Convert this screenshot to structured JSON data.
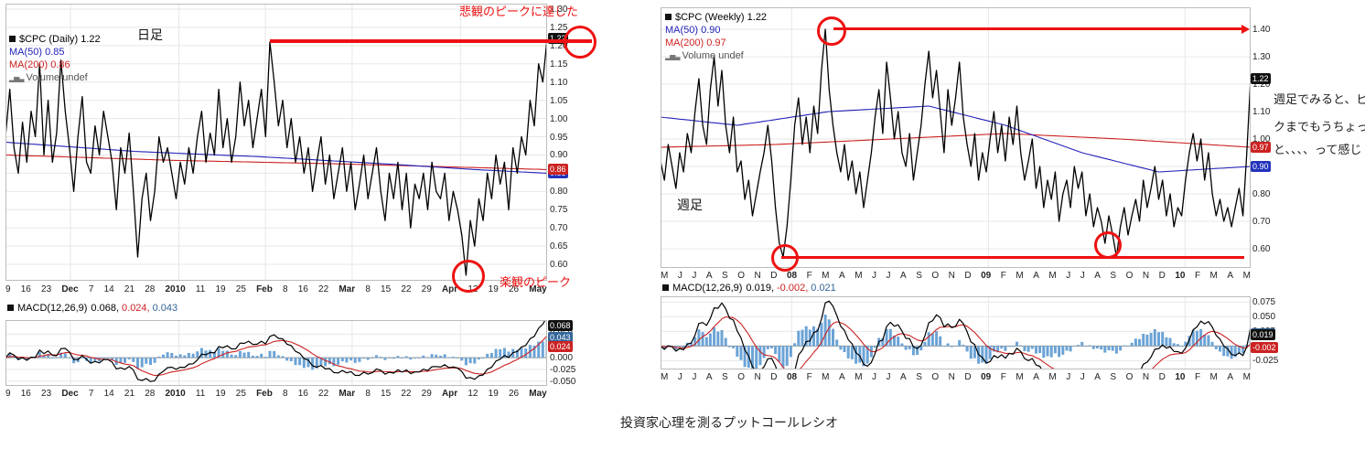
{
  "caption": "投資家心理を測るプットコールレシオ",
  "side_note": {
    "lines": [
      "週足でみると、ピー",
      "クまでもうちょっ",
      "と、、、、って感じ"
    ]
  },
  "colors": {
    "price": "#000000",
    "ma50": "#2222bb",
    "ma200": "#cc2222",
    "hist": "#6ba3d6",
    "signal": "#cc2222",
    "macd_line": "#000000",
    "grid": "#e7e7e7",
    "zero": "#999999",
    "annotation": "#ee1111",
    "box_black": "#111111",
    "box_red": "#cc2222",
    "box_blue": "#2233bb",
    "box_macd_blue": "#336699"
  },
  "left": {
    "legend": {
      "title": "$CPC (Daily) 1.22",
      "ma50": "MA(50) 0.85",
      "ma200": "MA(200) 0.86",
      "volume": "Volume undef"
    },
    "macd_legend": {
      "label": "MACD(12,26,9)",
      "v1": "0.068,",
      "v2": "0.024,",
      "v3": "0.043"
    },
    "frame_label": "日足",
    "ann_top": "悲観のピークに達した",
    "ann_bottom": "楽観のピーク"
  },
  "right": {
    "legend": {
      "title": "$CPC (Weekly) 1.22",
      "ma50": "MA(50) 0.90",
      "ma200": "MA(200) 0.97",
      "volume": "Volume undef"
    },
    "macd_legend": {
      "label": "MACD(12,26,9)",
      "v1": "0.019,",
      "v2": "-0.002,",
      "v3": "0.021"
    },
    "frame_label": "週足"
  },
  "chart_data": [
    {
      "id": "daily-price",
      "type": "line",
      "title": "$CPC (Daily) 1.22",
      "xlabel": "",
      "ylabel": "",
      "ylim": [
        0.555,
        1.315
      ],
      "yticks": [
        0.6,
        0.65,
        0.7,
        0.75,
        0.8,
        0.85,
        0.9,
        0.95,
        1.0,
        1.05,
        1.1,
        1.15,
        1.2,
        1.25,
        1.3
      ],
      "x_labels": [
        {
          "t": "9"
        },
        {
          "t": "16"
        },
        {
          "t": "23"
        },
        {
          "t": "Dec",
          "b": 1
        },
        {
          "t": "7"
        },
        {
          "t": "14"
        },
        {
          "t": "21"
        },
        {
          "t": "28"
        },
        {
          "t": "2010",
          "b": 1
        },
        {
          "t": "11"
        },
        {
          "t": "19"
        },
        {
          "t": "25"
        },
        {
          "t": "Feb",
          "b": 1
        },
        {
          "t": "8"
        },
        {
          "t": "16"
        },
        {
          "t": "22"
        },
        {
          "t": "Mar",
          "b": 1
        },
        {
          "t": "8"
        },
        {
          "t": "15"
        },
        {
          "t": "22"
        },
        {
          "t": "29"
        },
        {
          "t": "Apr",
          "b": 1
        },
        {
          "t": "12"
        },
        {
          "t": "19"
        },
        {
          "t": "26"
        },
        {
          "t": "May",
          "b": 1
        }
      ],
      "series": [
        {
          "name": "$CPC",
          "color_key": "price",
          "width": 1.3,
          "values": [
            0.95,
            1.08,
            0.92,
            0.85,
            0.99,
            0.88,
            1.02,
            0.95,
            1.15,
            0.9,
            1.05,
            0.88,
            0.96,
            1.16,
            1.02,
            0.92,
            0.8,
            0.95,
            1.06,
            0.88,
            0.85,
            0.98,
            0.9,
            1.02,
            0.95,
            0.88,
            0.75,
            0.92,
            0.85,
            0.96,
            0.8,
            0.62,
            0.78,
            0.85,
            0.72,
            0.8,
            0.95,
            0.88,
            0.92,
            0.85,
            0.78,
            0.88,
            0.82,
            0.92,
            0.85,
            0.95,
            1.02,
            0.88,
            0.96,
            0.9,
            1.08,
            0.92,
            1.0,
            0.88,
            0.95,
            1.1,
            0.98,
            1.05,
            0.92,
            1.0,
            1.08,
            0.95,
            1.21,
            1.1,
            0.98,
            1.05,
            0.92,
            1.0,
            0.88,
            0.95,
            0.85,
            0.92,
            0.8,
            0.88,
            0.95,
            0.82,
            0.9,
            0.78,
            0.85,
            0.92,
            0.8,
            0.88,
            0.75,
            0.82,
            0.9,
            0.78,
            0.85,
            0.92,
            0.8,
            0.72,
            0.85,
            0.78,
            0.88,
            0.75,
            0.85,
            0.7,
            0.82,
            0.78,
            0.85,
            0.75,
            0.88,
            0.8,
            0.78,
            0.85,
            0.72,
            0.8,
            0.75,
            0.68,
            0.57,
            0.72,
            0.65,
            0.78,
            0.72,
            0.85,
            0.78,
            0.9,
            0.82,
            0.88,
            0.75,
            0.92,
            0.85,
            0.95,
            0.9,
            1.05,
            0.98,
            1.15,
            1.1,
            1.22
          ]
        },
        {
          "name": "MA(50)",
          "color_key": "ma50",
          "width": 1.1,
          "knots": [
            [
              0,
              0.935
            ],
            [
              30,
              0.91
            ],
            [
              60,
              0.895
            ],
            [
              90,
              0.875
            ],
            [
              110,
              0.86
            ],
            [
              127,
              0.85
            ]
          ]
        },
        {
          "name": "MA(200)",
          "color_key": "ma200",
          "width": 1.1,
          "knots": [
            [
              0,
              0.9
            ],
            [
              40,
              0.885
            ],
            [
              80,
              0.875
            ],
            [
              127,
              0.86
            ]
          ]
        }
      ],
      "boxes": [
        {
          "v": 1.22,
          "t": "1.22",
          "bg": "#111111"
        },
        {
          "v": 0.85,
          "t": "0.85",
          "bg": "#2233bb"
        },
        {
          "v": 0.86,
          "t": "0.86",
          "bg": "#cc2222"
        }
      ]
    },
    {
      "id": "daily-macd",
      "type": "macd",
      "title": "MACD(12,26,9) 0.068, 0.024, 0.043",
      "source": "daily-price",
      "params": [
        12,
        26,
        9
      ],
      "ylim": [
        -0.06,
        0.08
      ],
      "yticks": [
        -0.05,
        -0.025,
        0,
        0.025,
        0.05
      ],
      "boxes": [
        {
          "v": 0.068,
          "t": "0.068",
          "bg": "#111111"
        },
        {
          "v": 0.043,
          "t": "0.043",
          "bg": "#336699"
        },
        {
          "v": 0.024,
          "t": "0.024",
          "bg": "#cc2222"
        }
      ]
    },
    {
      "id": "weekly-price",
      "type": "line",
      "title": "$CPC (Weekly) 1.22",
      "xlabel": "",
      "ylabel": "",
      "ylim": [
        0.53,
        1.48
      ],
      "yticks": [
        0.6,
        0.7,
        0.8,
        0.9,
        1.0,
        1.1,
        1.2,
        1.3,
        1.4
      ],
      "x_labels": [
        {
          "t": "M"
        },
        {
          "t": "J"
        },
        {
          "t": "J"
        },
        {
          "t": "A"
        },
        {
          "t": "S"
        },
        {
          "t": "O"
        },
        {
          "t": "N"
        },
        {
          "t": "D"
        },
        {
          "t": "08",
          "b": 1
        },
        {
          "t": "F"
        },
        {
          "t": "M"
        },
        {
          "t": "A"
        },
        {
          "t": "M"
        },
        {
          "t": "J"
        },
        {
          "t": "J"
        },
        {
          "t": "A"
        },
        {
          "t": "S"
        },
        {
          "t": "O"
        },
        {
          "t": "N"
        },
        {
          "t": "D"
        },
        {
          "t": "09",
          "b": 1
        },
        {
          "t": "F"
        },
        {
          "t": "M"
        },
        {
          "t": "A"
        },
        {
          "t": "M"
        },
        {
          "t": "J"
        },
        {
          "t": "J"
        },
        {
          "t": "A"
        },
        {
          "t": "S"
        },
        {
          "t": "O"
        },
        {
          "t": "N"
        },
        {
          "t": "D"
        },
        {
          "t": "10",
          "b": 1
        },
        {
          "t": "F"
        },
        {
          "t": "M"
        },
        {
          "t": "A"
        },
        {
          "t": "M"
        }
      ],
      "series": [
        {
          "name": "$CPC",
          "color_key": "price",
          "width": 1.3,
          "values": [
            0.92,
            0.85,
            0.98,
            0.9,
            0.82,
            0.95,
            0.88,
            1.02,
            0.95,
            1.1,
            1.22,
            1.05,
            0.98,
            1.18,
            1.3,
            1.12,
            1.25,
            1.05,
            0.95,
            1.08,
            0.88,
            0.92,
            0.78,
            0.85,
            0.72,
            0.8,
            0.88,
            0.95,
            1.05,
            0.92,
            0.75,
            0.62,
            0.57,
            0.68,
            0.85,
            1.05,
            1.15,
            0.98,
            1.08,
            0.95,
            1.12,
            1.02,
            1.25,
            1.4,
            1.18,
            1.05,
            0.95,
            0.88,
            0.98,
            0.85,
            0.92,
            0.8,
            0.88,
            0.75,
            0.85,
            0.95,
            1.08,
            1.18,
            1.02,
            1.28,
            1.15,
            1.0,
            1.1,
            0.95,
            0.9,
            1.02,
            0.85,
            0.95,
            1.05,
            1.2,
            1.32,
            1.15,
            1.25,
            1.1,
            0.95,
            1.18,
            1.05,
            1.15,
            1.28,
            1.08,
            0.98,
            0.9,
            1.02,
            0.85,
            0.95,
            0.88,
            1.0,
            1.1,
            0.95,
            1.05,
            0.92,
            1.08,
            0.98,
            1.12,
            0.95,
            0.85,
            0.92,
            1.0,
            0.82,
            0.9,
            0.75,
            0.85,
            0.78,
            0.88,
            0.7,
            0.8,
            0.85,
            0.75,
            0.9,
            0.82,
            0.88,
            0.72,
            0.8,
            0.68,
            0.75,
            0.7,
            0.62,
            0.72,
            0.65,
            0.57,
            0.68,
            0.75,
            0.65,
            0.72,
            0.78,
            0.7,
            0.85,
            0.75,
            0.82,
            0.9,
            0.78,
            0.85,
            0.72,
            0.8,
            0.68,
            0.75,
            0.72,
            0.85,
            0.95,
            1.02,
            0.92,
            1.0,
            0.85,
            0.95,
            0.8,
            0.72,
            0.78,
            0.7,
            0.75,
            0.68,
            0.75,
            0.82,
            0.72,
            0.95,
            1.22
          ]
        },
        {
          "name": "MA(50)",
          "color_key": "ma50",
          "width": 1.1,
          "knots": [
            [
              0,
              1.08
            ],
            [
              20,
              1.05
            ],
            [
              44,
              1.1
            ],
            [
              70,
              1.12
            ],
            [
              90,
              1.05
            ],
            [
              110,
              0.95
            ],
            [
              130,
              0.88
            ],
            [
              154,
              0.9
            ]
          ]
        },
        {
          "name": "MA(200)",
          "color_key": "ma200",
          "width": 1.1,
          "knots": [
            [
              0,
              0.97
            ],
            [
              30,
              0.98
            ],
            [
              60,
              1.0
            ],
            [
              90,
              1.02
            ],
            [
              120,
              1.0
            ],
            [
              154,
              0.97
            ]
          ]
        }
      ],
      "boxes": [
        {
          "v": 1.22,
          "t": "1.22",
          "bg": "#111111"
        },
        {
          "v": 0.9,
          "t": "0.90",
          "bg": "#2233bb"
        },
        {
          "v": 0.97,
          "t": "0.97",
          "bg": "#cc2222"
        }
      ]
    },
    {
      "id": "weekly-macd",
      "type": "macd",
      "title": "MACD(12,26,9) 0.019, -0.002, 0.021",
      "source": "weekly-price",
      "params": [
        12,
        26,
        9
      ],
      "ylim": [
        -0.04,
        0.085
      ],
      "yticks": [
        -0.025,
        0,
        0.025,
        0.05,
        0.075
      ],
      "boxes": [
        {
          "v": 0.021,
          "t": "0.021",
          "bg": "#336699"
        },
        {
          "v": 0.019,
          "t": "0.019",
          "bg": "#111111"
        },
        {
          "v": -0.002,
          "t": "-0.002",
          "bg": "#cc2222"
        }
      ]
    }
  ]
}
